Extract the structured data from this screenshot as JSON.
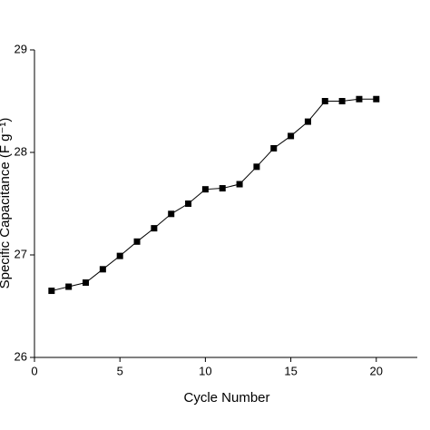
{
  "chart_data": {
    "type": "line",
    "x_label": "Cycle Number",
    "y_label": "Specific Capacitance (F g⁻¹)",
    "x": [
      1,
      2,
      3,
      4,
      5,
      6,
      7,
      8,
      9,
      10,
      11,
      12,
      13,
      14,
      15,
      16,
      17,
      18,
      19,
      20
    ],
    "series": [
      {
        "color": "#000000",
        "values": [
          26.65,
          26.69,
          26.73,
          26.86,
          26.99,
          27.13,
          27.26,
          27.4,
          27.5,
          27.64,
          27.65,
          27.69,
          27.86,
          28.04,
          28.16,
          28.3,
          28.5,
          28.5,
          28.52,
          28.52
        ]
      }
    ],
    "xlim": [
      0,
      22.4
    ],
    "xticks": [
      0,
      5,
      10,
      15,
      20
    ],
    "ylim": [
      26,
      29
    ],
    "yticks": [
      26,
      27,
      28,
      29
    ]
  }
}
